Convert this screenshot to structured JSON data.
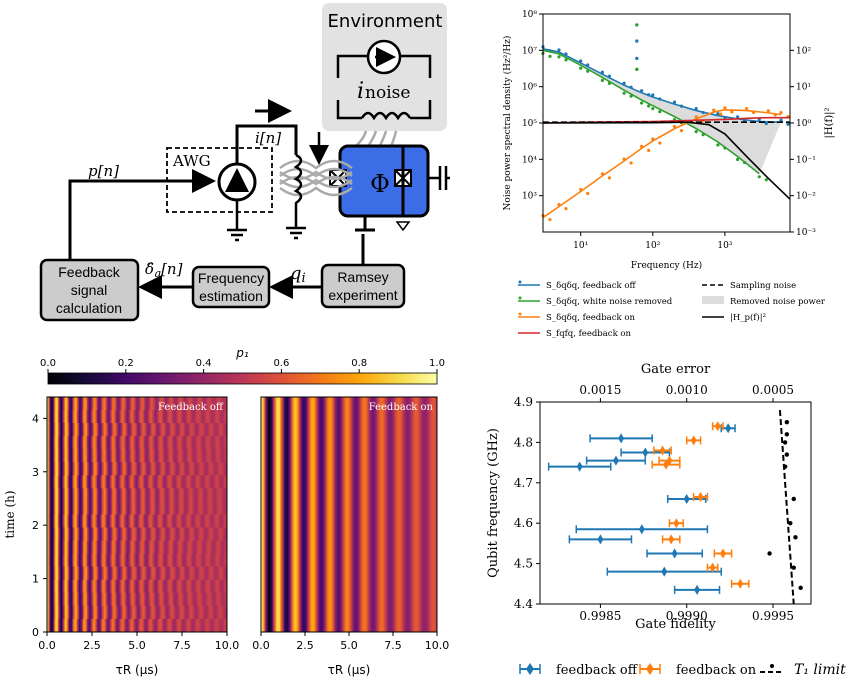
{
  "colors": {
    "blue": "#1f77b4",
    "orange": "#ff7f0e",
    "green": "#2ca02c",
    "red": "#d62728",
    "qubit": "#3a6de6",
    "box": "#cccccc",
    "env": "#e0e0e0"
  },
  "schematic": {
    "environment": "Environment",
    "i_noise": "i",
    "i_noise_sub": "noise",
    "awg": "AWG",
    "p_n": "p[n]",
    "i_n": "i[n]",
    "phi": "Φ",
    "q_i": "q",
    "q_i_sub": "i",
    "delta_label": "δ̂",
    "delta_sub": "q",
    "delta_n": "[n]",
    "feedback_box": [
      "Feedback",
      "signal",
      "calculation"
    ],
    "freq_box": [
      "Frequency",
      "estimation"
    ],
    "ramsey_box": [
      "Ramsey",
      "experiment"
    ]
  },
  "chart_data": [
    {
      "type": "line",
      "title": "",
      "xlabel": "Frequency (Hz)",
      "ylabel": "Noise power spectral density (Hz²/Hz)",
      "ylabel_right": "|H(f)|²",
      "xscale": "log",
      "yscale": "log",
      "xlim": [
        3,
        8000
      ],
      "ylim": [
        100,
        100000000
      ],
      "ylim_right": [
        0.001,
        1000
      ],
      "xticks": [
        10,
        100,
        1000
      ],
      "xtick_labels": [
        "10¹",
        "10²",
        "10³"
      ],
      "yticks": [
        1000,
        10000,
        100000,
        1000000,
        10000000,
        100000000
      ],
      "ytick_labels": [
        "10³",
        "10⁴",
        "10⁵",
        "10⁶",
        "10⁷",
        "10⁸"
      ],
      "yticks_right": [
        0.001,
        0.01,
        0.1,
        1,
        10,
        100
      ],
      "ytick_labels_right": [
        "10⁻³",
        "10⁻²",
        "10⁻¹",
        "10⁰",
        "10¹",
        "10²"
      ],
      "series": [
        {
          "name": "S_δqδq, feedback off",
          "kind": "line+points",
          "color": "blue",
          "x": [
            3,
            5,
            10,
            20,
            40,
            70,
            100,
            200,
            400,
            800,
            1500,
            3000,
            6000
          ],
          "y": [
            11000000,
            9000000,
            4500000,
            2200000,
            1100000,
            680000,
            520000,
            330000,
            220000,
            160000,
            130000,
            110000,
            105000
          ]
        },
        {
          "name": "S_δqδq, white noise removed",
          "kind": "line+points",
          "color": "green",
          "x": [
            3,
            5,
            10,
            20,
            40,
            70,
            100,
            200,
            400,
            800,
            1500,
            3000
          ],
          "y": [
            10000000,
            8000000,
            3900000,
            1800000,
            800000,
            430000,
            300000,
            150000,
            70000,
            30000,
            12000,
            4000
          ]
        },
        {
          "name": "S_δqδq, feedback on",
          "kind": "line+points",
          "color": "orange",
          "x": [
            3,
            5,
            10,
            20,
            40,
            70,
            100,
            200,
            400,
            700,
            1000,
            2000,
            4000,
            6000
          ],
          "y": [
            250,
            500,
            1300,
            3500,
            9000,
            20000,
            32000,
            70000,
            130000,
            200000,
            230000,
            220000,
            190000,
            170000
          ]
        },
        {
          "name": "S_fqfq, feedback on",
          "kind": "line",
          "color": "red",
          "x": [
            3,
            10,
            100,
            1000,
            2000,
            4000,
            8000
          ],
          "y": [
            100000,
            105000,
            110000,
            125000,
            135000,
            140000,
            140000
          ]
        },
        {
          "name": "|H_p(f)|²",
          "kind": "line",
          "color": "black",
          "axis": "right",
          "x": [
            3,
            100,
            300,
            600,
            1000,
            2000,
            4000,
            8000
          ],
          "y": [
            1,
            1.02,
            1.05,
            0.9,
            0.5,
            0.12,
            0.03,
            0.008
          ]
        },
        {
          "name": "Sampling noise",
          "kind": "dashed",
          "color": "black",
          "x": [
            3,
            8000
          ],
          "y": [
            105000,
            105000
          ]
        }
      ],
      "outliers": [
        {
          "x": 60,
          "y": 50000000,
          "color": "green"
        },
        {
          "x": 60,
          "y": 18000000,
          "color": "blue"
        },
        {
          "x": 60,
          "y": 6000000,
          "color": "blue"
        },
        {
          "x": 60,
          "y": 3000000,
          "color": "green"
        }
      ],
      "legend": [
        "S_δqδq, feedback off",
        "S_δqδq, white noise removed",
        "S_δqδq, feedback on",
        "S_fqfq, feedback on",
        "Sampling noise",
        "Removed noise power",
        "|H_p(f)|²"
      ]
    },
    {
      "type": "heatmap",
      "title": "Feedback off",
      "colorbar_label": "p₁",
      "colorbar_ticks": [
        "0.0",
        "0.2",
        "0.4",
        "0.6",
        "0.8",
        "1.0"
      ],
      "xlabel": "τR (µs)",
      "ylabel": "time (h)",
      "xlim": [
        0,
        10
      ],
      "ylim": [
        0,
        4.4
      ],
      "xticks": [
        "0.0",
        "2.5",
        "5.0",
        "7.5",
        "10.0"
      ],
      "yticks": [
        "0",
        "1",
        "2",
        "3",
        "4"
      ],
      "fringe_period_us": 0.53,
      "decay_us": 4.0
    },
    {
      "type": "heatmap",
      "title": "Feedback on",
      "xlabel": "τR (µs)",
      "xlim": [
        0,
        10
      ],
      "xticks": [
        "0.0",
        "2.5",
        "5.0",
        "7.5",
        "10.0"
      ],
      "fringe_period_us": 0.98,
      "decay_us": 6.5
    },
    {
      "type": "scatter",
      "xlabel": "Gate fidelity",
      "xlabel_top": "Gate error",
      "ylabel": "Qubit frequency (GHz)",
      "xlim": [
        0.99815,
        0.99972
      ],
      "ylim": [
        4.4,
        4.9
      ],
      "xticks": [
        0.9985,
        0.999,
        0.9995
      ],
      "xtick_labels": [
        "0.9985",
        "0.9990",
        "0.9995"
      ],
      "xticks_top": [
        0.0015,
        0.001,
        0.0005
      ],
      "xtick_labels_top": [
        "0.0015",
        "0.0010",
        "0.0005"
      ],
      "yticks": [
        4.4,
        4.5,
        4.6,
        4.7,
        4.8,
        4.9
      ],
      "ytick_labels": [
        "4.4",
        "4.5",
        "4.6",
        "4.7",
        "4.8",
        "4.9"
      ],
      "series": [
        {
          "name": "feedback off",
          "color": "blue",
          "points": [
            {
              "f": 4.835,
              "x": 0.99924,
              "err": 4e-05
            },
            {
              "f": 4.81,
              "x": 0.99862,
              "err": 0.00018
            },
            {
              "f": 4.775,
              "x": 0.99876,
              "err": 0.00014
            },
            {
              "f": 4.755,
              "x": 0.99859,
              "err": 0.00017
            },
            {
              "f": 4.74,
              "x": 0.99838,
              "err": 0.00018
            },
            {
              "f": 4.66,
              "x": 0.999,
              "err": 0.00011
            },
            {
              "f": 4.585,
              "x": 0.99874,
              "err": 0.00038
            },
            {
              "f": 4.56,
              "x": 0.9985,
              "err": 0.00018
            },
            {
              "f": 4.525,
              "x": 0.99893,
              "err": 0.00016
            },
            {
              "f": 4.48,
              "x": 0.99887,
              "err": 0.00033
            },
            {
              "f": 4.435,
              "x": 0.99906,
              "err": 0.00013
            }
          ]
        },
        {
          "name": "feedback on",
          "color": "orange",
          "points": [
            {
              "f": 4.84,
              "x": 0.99918,
              "err": 3e-05
            },
            {
              "f": 4.805,
              "x": 0.99904,
              "err": 4e-05
            },
            {
              "f": 4.78,
              "x": 0.99886,
              "err": 5e-05
            },
            {
              "f": 4.755,
              "x": 0.9989,
              "err": 6e-05
            },
            {
              "f": 4.745,
              "x": 0.99888,
              "err": 8e-05
            },
            {
              "f": 4.665,
              "x": 0.99908,
              "err": 4e-05
            },
            {
              "f": 4.6,
              "x": 0.99894,
              "err": 4e-05
            },
            {
              "f": 4.56,
              "x": 0.99891,
              "err": 5e-05
            },
            {
              "f": 4.525,
              "x": 0.99921,
              "err": 5e-05
            },
            {
              "f": 4.49,
              "x": 0.99915,
              "err": 3e-05
            },
            {
              "f": 4.45,
              "x": 0.99931,
              "err": 5e-05
            }
          ]
        },
        {
          "name": "T₁ limit",
          "color": "black",
          "points": [
            {
              "f": 4.85,
              "x": 0.99958
            },
            {
              "f": 4.82,
              "x": 0.99958
            },
            {
              "f": 4.8,
              "x": 0.99957
            },
            {
              "f": 4.77,
              "x": 0.99958
            },
            {
              "f": 4.74,
              "x": 0.99957
            },
            {
              "f": 4.66,
              "x": 0.99962
            },
            {
              "f": 4.6,
              "x": 0.9996
            },
            {
              "f": 4.565,
              "x": 0.99963
            },
            {
              "f": 4.525,
              "x": 0.99948
            },
            {
              "f": 4.49,
              "x": 0.99962
            },
            {
              "f": 4.44,
              "x": 0.99966
            }
          ],
          "fit": [
            {
              "f": 4.88,
              "x": 0.99954
            },
            {
              "f": 4.4,
              "x": 0.99962
            }
          ]
        }
      ],
      "legend": [
        "feedback off",
        "feedback on",
        "T₁ limit"
      ]
    }
  ]
}
